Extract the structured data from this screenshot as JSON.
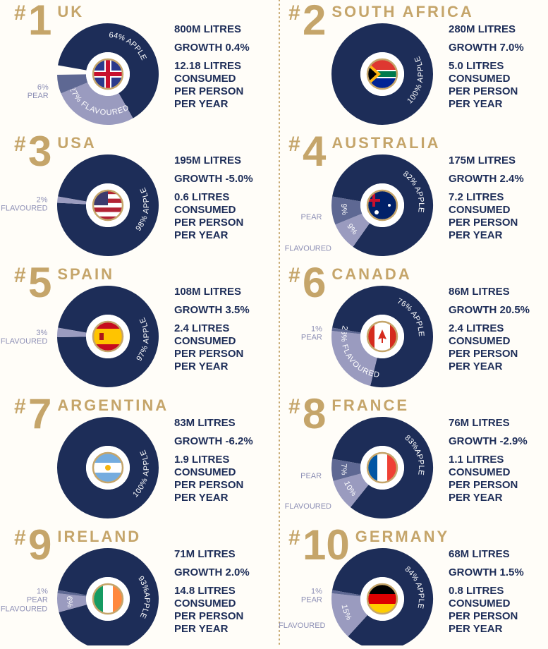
{
  "rank_symbol": "#",
  "panels": [
    {
      "rank": "1",
      "country": "UK",
      "stats": [
        "800M LITRES",
        "GROWTH 0.4%",
        "12.18 LITRES",
        "CONSUMED",
        "PER PERSON",
        "PER YEAR"
      ],
      "segments": [
        {
          "value": 64,
          "color": "#1d2d58",
          "inner": "64% APPLE"
        },
        {
          "value": 27,
          "color": "#9a9bbf",
          "inner": "27% FLAVOURED"
        },
        {
          "value": 6,
          "color": "#5e6893",
          "outer": [
            "6%",
            "PEAR"
          ]
        }
      ]
    },
    {
      "rank": "2",
      "country": "SOUTH AFRICA",
      "stats": [
        "280M LITRES",
        "GROWTH 7.0%",
        "5.0 LITRES",
        "CONSUMED",
        "PER PERSON",
        "PER YEAR"
      ],
      "segments": [
        {
          "value": 100,
          "color": "#1d2d58",
          "inner": "100% APPLE"
        }
      ]
    },
    {
      "rank": "3",
      "country": "USA",
      "stats": [
        "195M LITRES",
        "GROWTH -5.0%",
        "0.6 LITRES",
        "CONSUMED",
        "PER PERSON",
        "PER YEAR"
      ],
      "segments": [
        {
          "value": 98,
          "color": "#1d2d58",
          "inner": "98% APPLE"
        },
        {
          "value": 2,
          "color": "#9a9bbf",
          "outer": [
            "2%",
            "FLAVOURED"
          ]
        }
      ]
    },
    {
      "rank": "4",
      "country": "AUSTRALIA",
      "stats": [
        "175M LITRES",
        "GROWTH 2.4%",
        "7.2 LITRES",
        "CONSUMED",
        "PER PERSON",
        "PER YEAR"
      ],
      "segments": [
        {
          "value": 82,
          "color": "#1d2d58",
          "inner": "82% APPLE"
        },
        {
          "value": 9,
          "color": "#9a9bbf",
          "inner": "9%",
          "outer": [
            "FLAVOURED"
          ]
        },
        {
          "value": 9,
          "color": "#5e6893",
          "inner": "9%",
          "outer": [
            "PEAR"
          ]
        }
      ]
    },
    {
      "rank": "5",
      "country": "SPAIN",
      "stats": [
        "108M LITRES",
        "GROWTH 3.5%",
        "2.4 LITRES",
        "CONSUMED",
        "PER PERSON",
        "PER YEAR"
      ],
      "segments": [
        {
          "value": 97,
          "color": "#1d2d58",
          "inner": "97% APPLE"
        },
        {
          "value": 3,
          "color": "#9a9bbf",
          "outer": [
            "3%",
            "FLAVOURED"
          ]
        }
      ]
    },
    {
      "rank": "6",
      "country": "CANADA",
      "stats": [
        "86M LITRES",
        "GROWTH 20.5%",
        "2.4 LITRES",
        "CONSUMED",
        "PER PERSON",
        "PER YEAR"
      ],
      "segments": [
        {
          "value": 76,
          "color": "#1d2d58",
          "inner": "76% APPLE"
        },
        {
          "value": 23,
          "color": "#9a9bbf",
          "inner": "23% FLAVOURED"
        },
        {
          "value": 1,
          "color": "#5e6893",
          "outer": [
            "1%",
            "PEAR"
          ]
        }
      ]
    },
    {
      "rank": "7",
      "country": "ARGENTINA",
      "stats": [
        "83M LITRES",
        "GROWTH -6.2%",
        "1.9 LITRES",
        "CONSUMED",
        "PER PERSON",
        "PER YEAR"
      ],
      "segments": [
        {
          "value": 100,
          "color": "#1d2d58",
          "inner": "100% APPLE"
        }
      ]
    },
    {
      "rank": "8",
      "country": "FRANCE",
      "stats": [
        "76M LITRES",
        "GROWTH -2.9%",
        "1.1 LITRES",
        "CONSUMED",
        "PER PERSON",
        "PER YEAR"
      ],
      "segments": [
        {
          "value": 83,
          "color": "#1d2d58",
          "inner": "83%APPLE"
        },
        {
          "value": 10,
          "color": "#9a9bbf",
          "inner": "10%",
          "outer": [
            "FLAVOURED"
          ]
        },
        {
          "value": 7,
          "color": "#5e6893",
          "inner": "7%",
          "outer": [
            "PEAR"
          ]
        }
      ]
    },
    {
      "rank": "9",
      "country": "IRELAND",
      "stats": [
        "71M LITRES",
        "GROWTH 2.0%",
        "14.8 LITRES",
        "CONSUMED",
        "PER PERSON",
        "PER YEAR"
      ],
      "segments": [
        {
          "value": 93,
          "color": "#1d2d58",
          "inner": "93%APPLE"
        },
        {
          "value": 6,
          "color": "#9a9bbf",
          "inner": "6%",
          "outer": [
            "FLAVOURED"
          ]
        },
        {
          "value": 1,
          "color": "#5e6893",
          "outer": [
            "1%",
            "PEAR"
          ]
        }
      ]
    },
    {
      "rank": "10",
      "country": "GERMANY",
      "stats": [
        "68M LITRES",
        "GROWTH 1.5%",
        "0.8 LITRES",
        "CONSUMED",
        "PER PERSON",
        "PER YEAR"
      ],
      "segments": [
        {
          "value": 84,
          "color": "#1d2d58",
          "inner": "84% APPLE"
        },
        {
          "value": 15,
          "color": "#9a9bbf",
          "inner": "15%",
          "outer": [
            "FLAVOURED"
          ]
        },
        {
          "value": 1,
          "color": "#5e6893",
          "outer": [
            "1%",
            "PEAR"
          ]
        }
      ]
    }
  ]
}
